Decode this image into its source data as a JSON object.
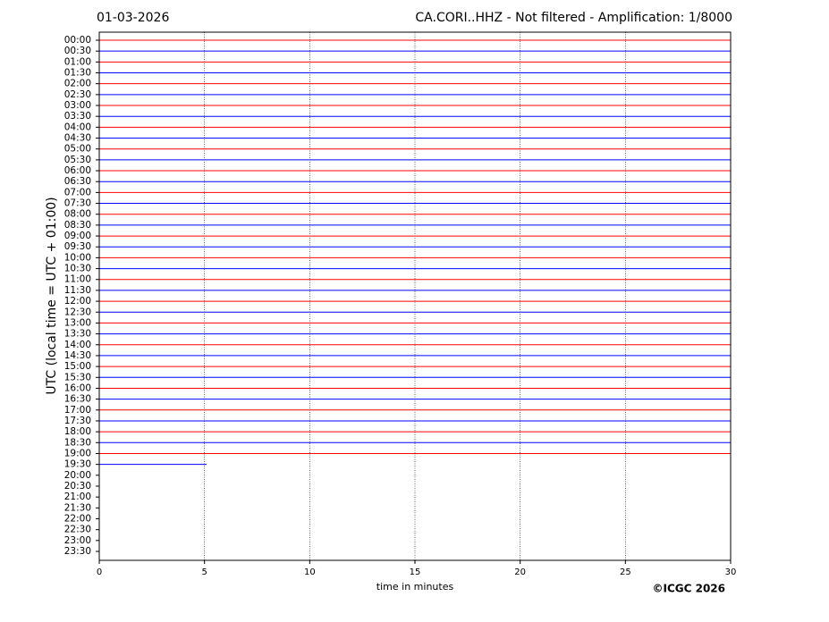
{
  "chart_data": {
    "type": "helicorder",
    "title": "01-03-2026",
    "subtitle": "CA.CORI..HHZ - Not filtered - Amplification: 1/8000",
    "x_label": "time in minutes",
    "y_label": "UTC (local time = UTC + 01:00)",
    "credit": "©ICGC 2026",
    "categories": [
      "00:00",
      "00:30",
      "01:00",
      "01:30",
      "02:00",
      "02:30",
      "03:00",
      "03:30",
      "04:00",
      "04:30",
      "05:00",
      "05:30",
      "06:00",
      "06:30",
      "07:00",
      "07:30",
      "08:00",
      "08:30",
      "09:00",
      "09:30",
      "10:00",
      "10:30",
      "11:00",
      "11:30",
      "12:00",
      "12:30",
      "13:00",
      "13:30",
      "14:00",
      "14:30",
      "15:00",
      "15:30",
      "16:00",
      "16:30",
      "17:00",
      "17:30",
      "18:00",
      "18:30",
      "19:00",
      "19:30",
      "20:00",
      "20:30",
      "21:00",
      "21:30",
      "22:00",
      "22:30",
      "23:00",
      "23:30"
    ],
    "trace_end": [
      30,
      30,
      30,
      30,
      30,
      30,
      30,
      30,
      30,
      30,
      30,
      30,
      30,
      30,
      30,
      30,
      30,
      30,
      30,
      30,
      30,
      30,
      30,
      30,
      30,
      30,
      30,
      30,
      30,
      30,
      30,
      30,
      30,
      30,
      30,
      30,
      30,
      30,
      30,
      5.1,
      null,
      null,
      null,
      null,
      null,
      null,
      null,
      null
    ],
    "colors": [
      "#ff0000",
      "#0000ff"
    ],
    "xlim": [
      0,
      30
    ],
    "xticks": [
      0,
      5,
      10,
      15,
      20,
      25,
      30
    ],
    "grid": true
  }
}
